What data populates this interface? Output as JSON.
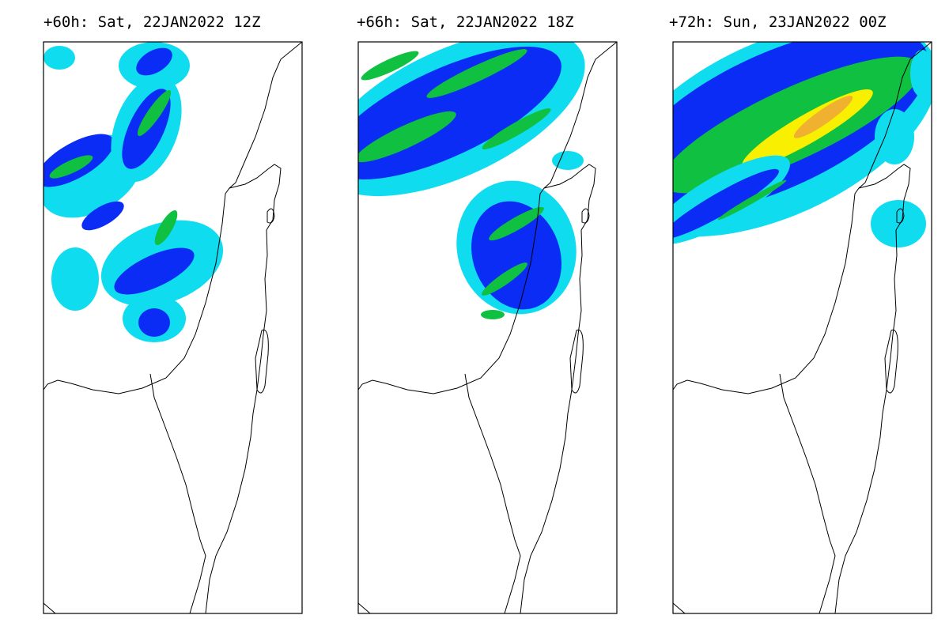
{
  "panels": [
    {
      "title": "+60h: Sat, 22JAN2022 12Z"
    },
    {
      "title": "+66h: Sat, 22JAN2022 18Z"
    },
    {
      "title": "+72h: Sun, 23JAN2022 00Z"
    }
  ]
}
